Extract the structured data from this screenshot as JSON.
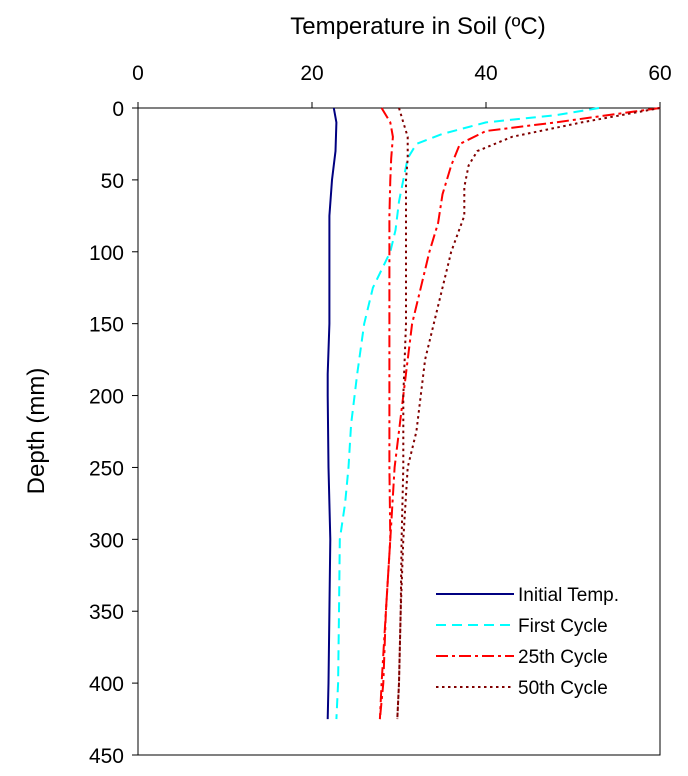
{
  "chart_data": {
    "type": "line",
    "title": "",
    "xlabel": "Temperature in Soil (ºC)",
    "ylabel": "Depth (mm)",
    "xlim": [
      0,
      60
    ],
    "ylim": [
      0,
      450
    ],
    "y_inverted": true,
    "x_axis_position": "top",
    "x_ticks": [
      0,
      20,
      40,
      60
    ],
    "y_ticks": [
      0,
      50,
      100,
      150,
      200,
      250,
      300,
      350,
      400,
      450
    ],
    "grid": false,
    "legend_position": "bottom-right",
    "series": [
      {
        "name": "Initial Temp.",
        "color": "#000080",
        "dash": "solid",
        "points": [
          [
            22.5,
            0
          ],
          [
            22.8,
            10
          ],
          [
            22.7,
            30
          ],
          [
            22.3,
            50
          ],
          [
            22.0,
            75
          ],
          [
            22.0,
            100
          ],
          [
            22.0,
            150
          ],
          [
            21.8,
            185
          ],
          [
            21.8,
            200
          ],
          [
            21.9,
            250
          ],
          [
            22.1,
            300
          ],
          [
            22.0,
            350
          ],
          [
            21.9,
            400
          ],
          [
            21.8,
            425
          ]
        ]
      },
      {
        "name": "First Cycle",
        "color": "#00FFFF",
        "dash": "dashed",
        "points": [
          [
            53,
            0
          ],
          [
            48,
            5
          ],
          [
            40,
            10
          ],
          [
            35,
            18
          ],
          [
            32,
            25
          ],
          [
            31,
            35
          ],
          [
            30.5,
            50
          ],
          [
            30,
            65
          ],
          [
            29.6,
            85
          ],
          [
            29,
            100
          ],
          [
            27,
            125
          ],
          [
            26,
            150
          ],
          [
            25.2,
            185
          ],
          [
            24.5,
            220
          ],
          [
            24.2,
            250
          ],
          [
            23.8,
            275
          ],
          [
            23.2,
            300
          ],
          [
            23.1,
            350
          ],
          [
            23.0,
            400
          ],
          [
            22.8,
            425
          ]
        ]
      },
      {
        "name": "25th Cycle",
        "color": "#FF0000",
        "dash": "dashdot",
        "points": [
          [
            60,
            0
          ],
          [
            48,
            10
          ],
          [
            40,
            16
          ],
          [
            37,
            25
          ],
          [
            36,
            40
          ],
          [
            35,
            60
          ],
          [
            34.5,
            80
          ],
          [
            33.5,
            100
          ],
          [
            32.5,
            125
          ],
          [
            31.5,
            150
          ],
          [
            30.5,
            200
          ],
          [
            29.5,
            250
          ],
          [
            29,
            300
          ],
          [
            28.5,
            350
          ],
          [
            28,
            400
          ],
          [
            27.8,
            425
          ]
        ]
      },
      {
        "name": "50th Cycle",
        "color": "#800000",
        "dash": "dotted",
        "points": [
          [
            60,
            0
          ],
          [
            51,
            10
          ],
          [
            43,
            20
          ],
          [
            39,
            30
          ],
          [
            38,
            40
          ],
          [
            37.5,
            55
          ],
          [
            37.5,
            75
          ],
          [
            36,
            100
          ],
          [
            35,
            125
          ],
          [
            33,
            175
          ],
          [
            32,
            225
          ],
          [
            31,
            250
          ],
          [
            30.5,
            300
          ],
          [
            30.2,
            350
          ],
          [
            30,
            400
          ],
          [
            29.8,
            425
          ]
        ]
      },
      {
        "name": "",
        "color": "#FF0000",
        "dash": "dashdot",
        "points": [
          [
            28,
            0
          ],
          [
            29,
            10
          ],
          [
            29.3,
            20
          ],
          [
            29.1,
            35
          ],
          [
            29,
            50
          ],
          [
            28.9,
            75
          ],
          [
            28.9,
            100
          ],
          [
            28.9,
            150
          ],
          [
            28.9,
            200
          ],
          [
            28.9,
            250
          ],
          [
            29,
            300
          ],
          [
            28.5,
            350
          ],
          [
            28.2,
            400
          ],
          [
            27.8,
            425
          ]
        ]
      },
      {
        "name": "",
        "color": "#800000",
        "dash": "dotted",
        "points": [
          [
            30,
            0
          ],
          [
            30.5,
            10
          ],
          [
            31,
            20
          ],
          [
            31,
            35
          ],
          [
            30.8,
            50
          ],
          [
            30.8,
            75
          ],
          [
            30.8,
            100
          ],
          [
            30.8,
            150
          ],
          [
            30.5,
            200
          ],
          [
            30.5,
            250
          ],
          [
            30.3,
            300
          ],
          [
            30.2,
            350
          ],
          [
            30,
            400
          ],
          [
            29.8,
            425
          ]
        ]
      }
    ]
  }
}
